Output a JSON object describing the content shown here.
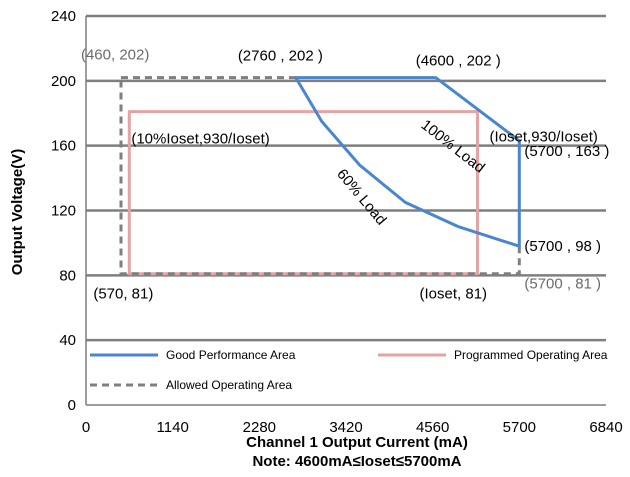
{
  "chart_data": {
    "type": "line",
    "xlabel": "Channel 1 Output Current (mA)",
    "note": "Note:  4600mA≤Ioset≤5700mA",
    "ylabel": "Output Voltage(V)",
    "xlim": [
      0,
      6840
    ],
    "ylim": [
      0,
      240
    ],
    "x_ticks": [
      0,
      1140,
      2280,
      3420,
      4560,
      5700,
      6840
    ],
    "y_ticks": [
      0,
      40,
      80,
      120,
      160,
      200,
      240
    ],
    "grid": "horizontal",
    "legend_position": "bottom-inside",
    "series": [
      {
        "name": "Good Performance Area",
        "color": "#4a86cf",
        "style": "solid",
        "x": [
          2760,
          4600,
          5700,
          5700,
          4900,
          4200,
          3600,
          3100,
          2760
        ],
        "y": [
          202,
          202,
          163,
          98,
          110,
          125,
          148,
          175,
          202
        ]
      },
      {
        "name": "Programmed Operating Area",
        "color": "#e6a3a3",
        "style": "solid",
        "x": [
          570,
          5150,
          5150,
          570,
          570
        ],
        "y": [
          181,
          181,
          81,
          81,
          181
        ]
      },
      {
        "name": "Allowed Operating Area",
        "color": "#7f7f7f",
        "style": "dashed",
        "x": [
          460,
          2760,
          null,
          5700,
          5700,
          460,
          460
        ],
        "y": [
          202,
          202,
          null,
          98,
          81,
          81,
          202
        ]
      }
    ],
    "annotations": [
      {
        "id": "p1",
        "text": "(460, 202)",
        "x": 460,
        "y": 202,
        "color": "gray"
      },
      {
        "id": "p2",
        "text": "(2760 , 202 )",
        "x": 2760,
        "y": 202,
        "color": "black"
      },
      {
        "id": "p3",
        "text": "(4600 , 202 )",
        "x": 4600,
        "y": 202,
        "color": "black"
      },
      {
        "id": "p4",
        "text": "(10%Ioset,930/Ioset)",
        "x": 570,
        "y": 181,
        "color": "black"
      },
      {
        "id": "p5",
        "text": "(Ioset,930/Ioset)",
        "x": 5150,
        "y": 181,
        "color": "black"
      },
      {
        "id": "p6",
        "text": "(5700 , 163 )",
        "x": 5700,
        "y": 163,
        "color": "black"
      },
      {
        "id": "p7",
        "text": "(5700 , 98 )",
        "x": 5700,
        "y": 98,
        "color": "black"
      },
      {
        "id": "p8",
        "text": "(570, 81)",
        "x": 570,
        "y": 81,
        "color": "black"
      },
      {
        "id": "p9",
        "text": "(Ioset, 81)",
        "x": 5150,
        "y": 81,
        "color": "black"
      },
      {
        "id": "p10",
        "text": "(5700 , 81 )",
        "x": 5700,
        "y": 81,
        "color": "gray"
      }
    ],
    "curve_labels": [
      {
        "id": "load100",
        "text": "100% Load"
      },
      {
        "id": "load60",
        "text": "60% Load"
      }
    ]
  }
}
